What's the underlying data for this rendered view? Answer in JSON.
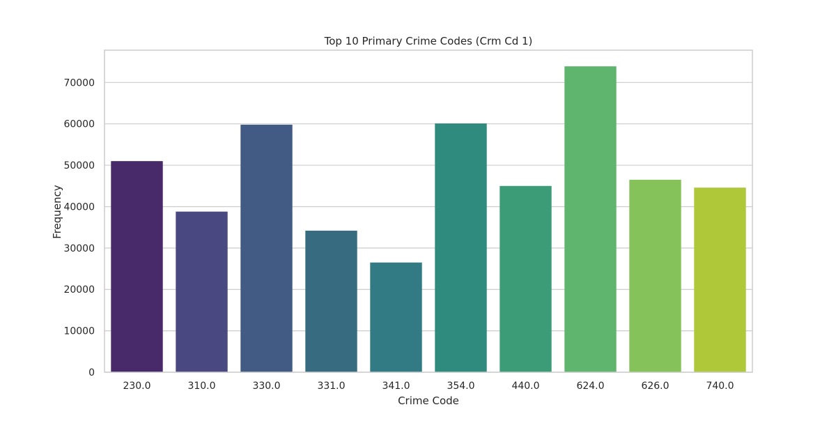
{
  "chart_data": {
    "type": "bar",
    "title": "Top 10 Primary Crime Codes (Crm Cd 1)",
    "xlabel": "Crime Code",
    "ylabel": "Frequency",
    "categories": [
      "230.0",
      "310.0",
      "330.0",
      "331.0",
      "341.0",
      "354.0",
      "440.0",
      "624.0",
      "626.0",
      "740.0"
    ],
    "values": [
      51000,
      38800,
      59800,
      34200,
      26500,
      60100,
      45000,
      73900,
      46500,
      44600
    ],
    "colors": [
      "#482a6b",
      "#4a4880",
      "#425b85",
      "#376c80",
      "#327b84",
      "#2f8b7e",
      "#3b9c77",
      "#5fb56d",
      "#86c25a",
      "#afc83a"
    ],
    "ylim": [
      0,
      77800
    ],
    "yticks": [
      0,
      10000,
      20000,
      30000,
      40000,
      50000,
      60000,
      70000
    ],
    "grid": "horizontal",
    "legend": "none"
  }
}
